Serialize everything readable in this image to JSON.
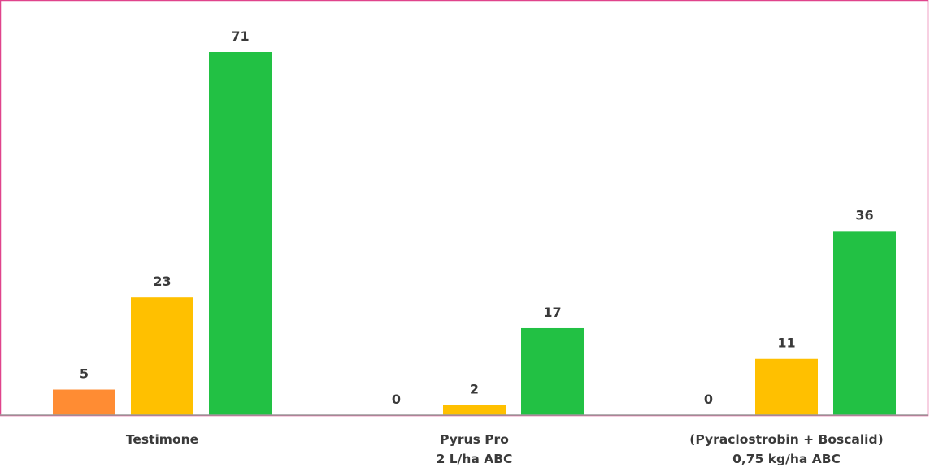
{
  "chart_data": {
    "type": "bar",
    "title": "",
    "xlabel": "",
    "ylabel": "",
    "ylim": [
      0,
      71
    ],
    "grid": false,
    "legend": "none",
    "categories": [
      [
        "Testimone"
      ],
      [
        "Pyrus Pro",
        "2 L/ha ABC"
      ],
      [
        "(Pyraclostrobin + Boscalid)",
        "0,75 kg/ha ABC"
      ]
    ],
    "series": [
      {
        "color": "#ff8c33",
        "values": [
          5,
          0,
          0
        ]
      },
      {
        "color": "#ffc000",
        "values": [
          23,
          2,
          11
        ]
      },
      {
        "color": "#22c144",
        "values": [
          71,
          17,
          36
        ]
      }
    ],
    "colors": {
      "frame": "#e0448c",
      "axis": "#9a9a9a",
      "text": "#3a3a3a"
    }
  }
}
